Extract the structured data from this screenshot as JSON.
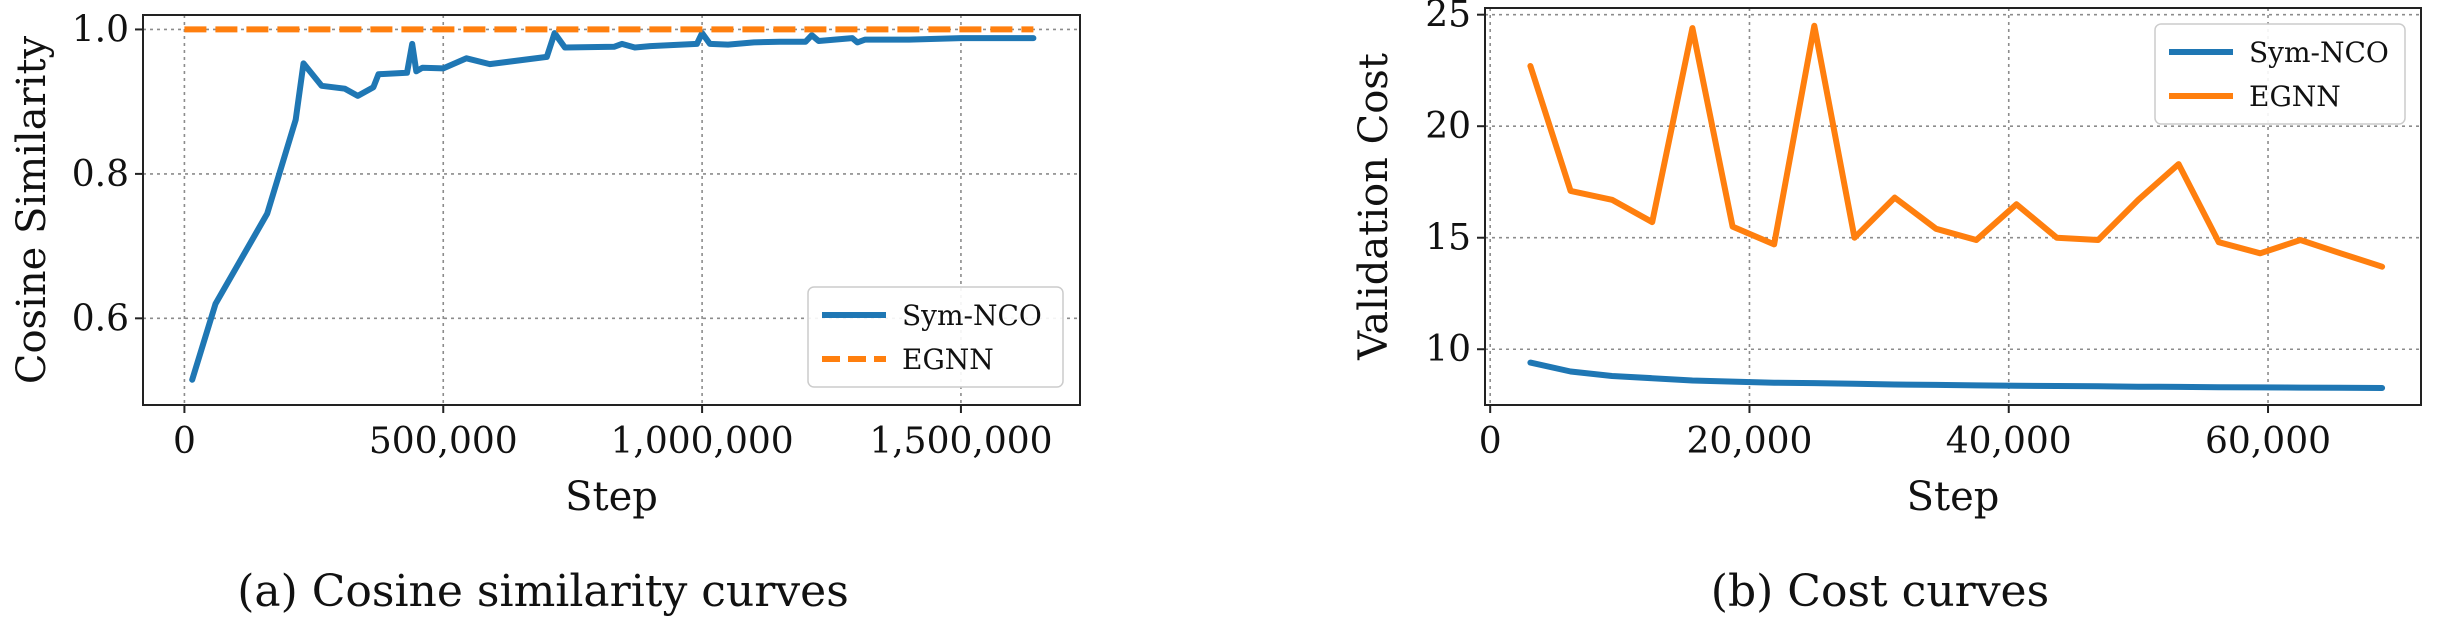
{
  "chart_data": [
    {
      "type": "line",
      "caption": "(a) Cosine similarity curves",
      "xlabel": "Step",
      "ylabel": "Cosine Similarity",
      "xlim": [
        -80000,
        1730000
      ],
      "ylim": [
        0.48,
        1.02
      ],
      "xticks": [
        0,
        500000,
        1000000,
        1500000
      ],
      "xtick_labels": [
        "0",
        "500,000",
        "1,000,000",
        "1,500,000"
      ],
      "yticks": [
        0.6,
        0.8,
        1.0
      ],
      "ytick_labels": [
        "0.6",
        "0.8",
        "1.0"
      ],
      "grid": true,
      "legend_position": "lower-right",
      "series": [
        {
          "name": "Sym-NCO",
          "color": "#1f77b4",
          "style": "solid",
          "x": [
            15000,
            60000,
            160000,
            215000,
            230000,
            265000,
            310000,
            335000,
            365000,
            375000,
            430000,
            440000,
            448000,
            460000,
            500000,
            545000,
            590000,
            700000,
            715000,
            735000,
            830000,
            845000,
            870000,
            900000,
            990000,
            1000000,
            1015000,
            1050000,
            1100000,
            1150000,
            1200000,
            1212000,
            1225000,
            1290000,
            1300000,
            1315000,
            1400000,
            1500000,
            1640000
          ],
          "y": [
            0.515,
            0.62,
            0.745,
            0.875,
            0.953,
            0.922,
            0.918,
            0.908,
            0.92,
            0.938,
            0.94,
            0.98,
            0.942,
            0.947,
            0.946,
            0.96,
            0.952,
            0.962,
            0.995,
            0.975,
            0.976,
            0.98,
            0.975,
            0.977,
            0.98,
            0.995,
            0.98,
            0.979,
            0.982,
            0.983,
            0.983,
            0.992,
            0.984,
            0.988,
            0.982,
            0.986,
            0.986,
            0.988,
            0.988
          ]
        },
        {
          "name": "EGNN",
          "color": "#ff7f0e",
          "style": "dashed",
          "x": [
            0,
            1640000
          ],
          "y": [
            1.0,
            1.0
          ]
        }
      ]
    },
    {
      "type": "line",
      "caption": "(b) Cost curves",
      "xlabel": "Step",
      "ylabel": "Validation Cost",
      "xlim": [
        -400,
        71800
      ],
      "ylim": [
        7.5,
        25.3
      ],
      "xticks": [
        0,
        20000,
        40000,
        60000
      ],
      "xtick_labels": [
        "0",
        "20,000",
        "40,000",
        "60,000"
      ],
      "yticks": [
        10,
        15,
        20,
        25
      ],
      "ytick_labels": [
        "10",
        "15",
        "20",
        "25"
      ],
      "grid": true,
      "legend_position": "upper-right",
      "series": [
        {
          "name": "Sym-NCO",
          "color": "#1f77b4",
          "style": "solid",
          "x": [
            3100,
            6200,
            9400,
            12500,
            15600,
            18700,
            21900,
            25000,
            28100,
            31200,
            34400,
            37500,
            40600,
            43700,
            46900,
            50000,
            53100,
            56200,
            59400,
            62500,
            65600,
            68800
          ],
          "y": [
            9.4,
            9.0,
            8.8,
            8.7,
            8.6,
            8.55,
            8.5,
            8.48,
            8.45,
            8.42,
            8.4,
            8.38,
            8.36,
            8.35,
            8.34,
            8.32,
            8.31,
            8.3,
            8.29,
            8.28,
            8.27,
            8.26
          ]
        },
        {
          "name": "EGNN",
          "color": "#ff7f0e",
          "style": "solid",
          "x": [
            3100,
            6200,
            9400,
            12500,
            15600,
            18700,
            21900,
            25000,
            28100,
            31200,
            34400,
            37500,
            40600,
            43700,
            46900,
            50000,
            53100,
            56200,
            59400,
            62500,
            65600,
            68800
          ],
          "y": [
            22.7,
            17.1,
            16.7,
            15.7,
            24.4,
            15.5,
            14.7,
            24.5,
            15.0,
            16.8,
            15.4,
            14.9,
            16.5,
            15.0,
            14.9,
            16.7,
            18.3,
            14.8,
            14.3,
            14.9,
            14.3,
            13.7
          ]
        }
      ]
    }
  ]
}
